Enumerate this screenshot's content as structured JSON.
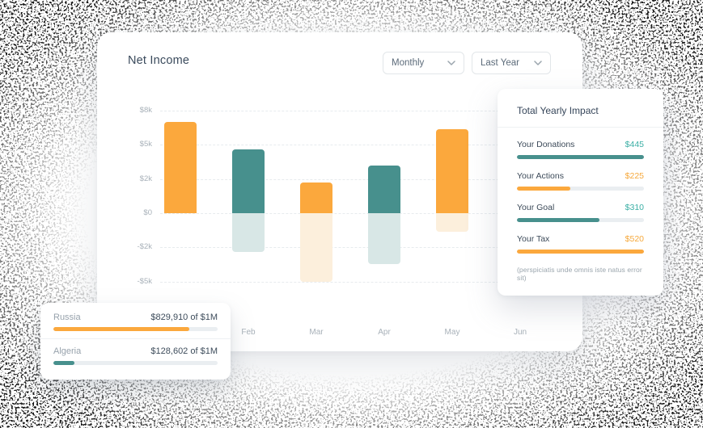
{
  "colors": {
    "orange": "#FBA83D",
    "teal": "#47908D",
    "orange_light": "#FCEFDC",
    "teal_light": "#D8E7E6",
    "orange_text": "#F6A83B",
    "teal_text": "#3BAFA5",
    "track": "#EAEEF1"
  },
  "main_card": {
    "title": "Net Income",
    "filters": [
      {
        "label": "Monthly"
      },
      {
        "label": "Last Year"
      }
    ]
  },
  "chart_data": {
    "type": "bar",
    "title": "Net Income",
    "y_ticks": [
      "$8k",
      "$5k",
      "$2k",
      "$0",
      "-$2k",
      "-$5k"
    ],
    "y_tick_values": [
      8000,
      5000,
      2000,
      0,
      -2000,
      -5000
    ],
    "x_labels": [
      "Feb",
      "Mar",
      "Apr",
      "May",
      "Jun"
    ],
    "x_label_slots": [
      1,
      2,
      3,
      4,
      5
    ],
    "grid": true,
    "legend": "none",
    "bars": [
      {
        "slot": 0,
        "positive": 7000,
        "negative": 0,
        "color": "orange"
      },
      {
        "slot": 1,
        "positive": 4600,
        "negative": -2400,
        "color": "teal"
      },
      {
        "slot": 2,
        "positive": 1800,
        "negative": -5000,
        "color": "orange"
      },
      {
        "slot": 3,
        "positive": 3200,
        "negative": -3500,
        "color": "teal"
      },
      {
        "slot": 4,
        "positive": 6400,
        "negative": -1100,
        "color": "orange"
      }
    ]
  },
  "impact_card": {
    "title": "Total Yearly Impact",
    "rows": [
      {
        "label": "Your Donations",
        "value": "$445",
        "color": "teal",
        "percent": 100
      },
      {
        "label": "Your Actions",
        "value": "$225",
        "color": "orange",
        "percent": 42
      },
      {
        "label": "Your Goal",
        "value": "$310",
        "color": "teal",
        "percent": 65
      },
      {
        "label": "Your Tax",
        "value": "$520",
        "color": "orange",
        "percent": 100
      }
    ],
    "footnote": "(perspiciatis unde omnis iste natus error sit)"
  },
  "countries_card": {
    "rows": [
      {
        "label": "Russia",
        "value": "$829,910 of $1M",
        "color": "orange",
        "percent": 83
      },
      {
        "label": "Algeria",
        "value": "$128,602 of $1M",
        "color": "teal",
        "percent": 13
      }
    ]
  }
}
